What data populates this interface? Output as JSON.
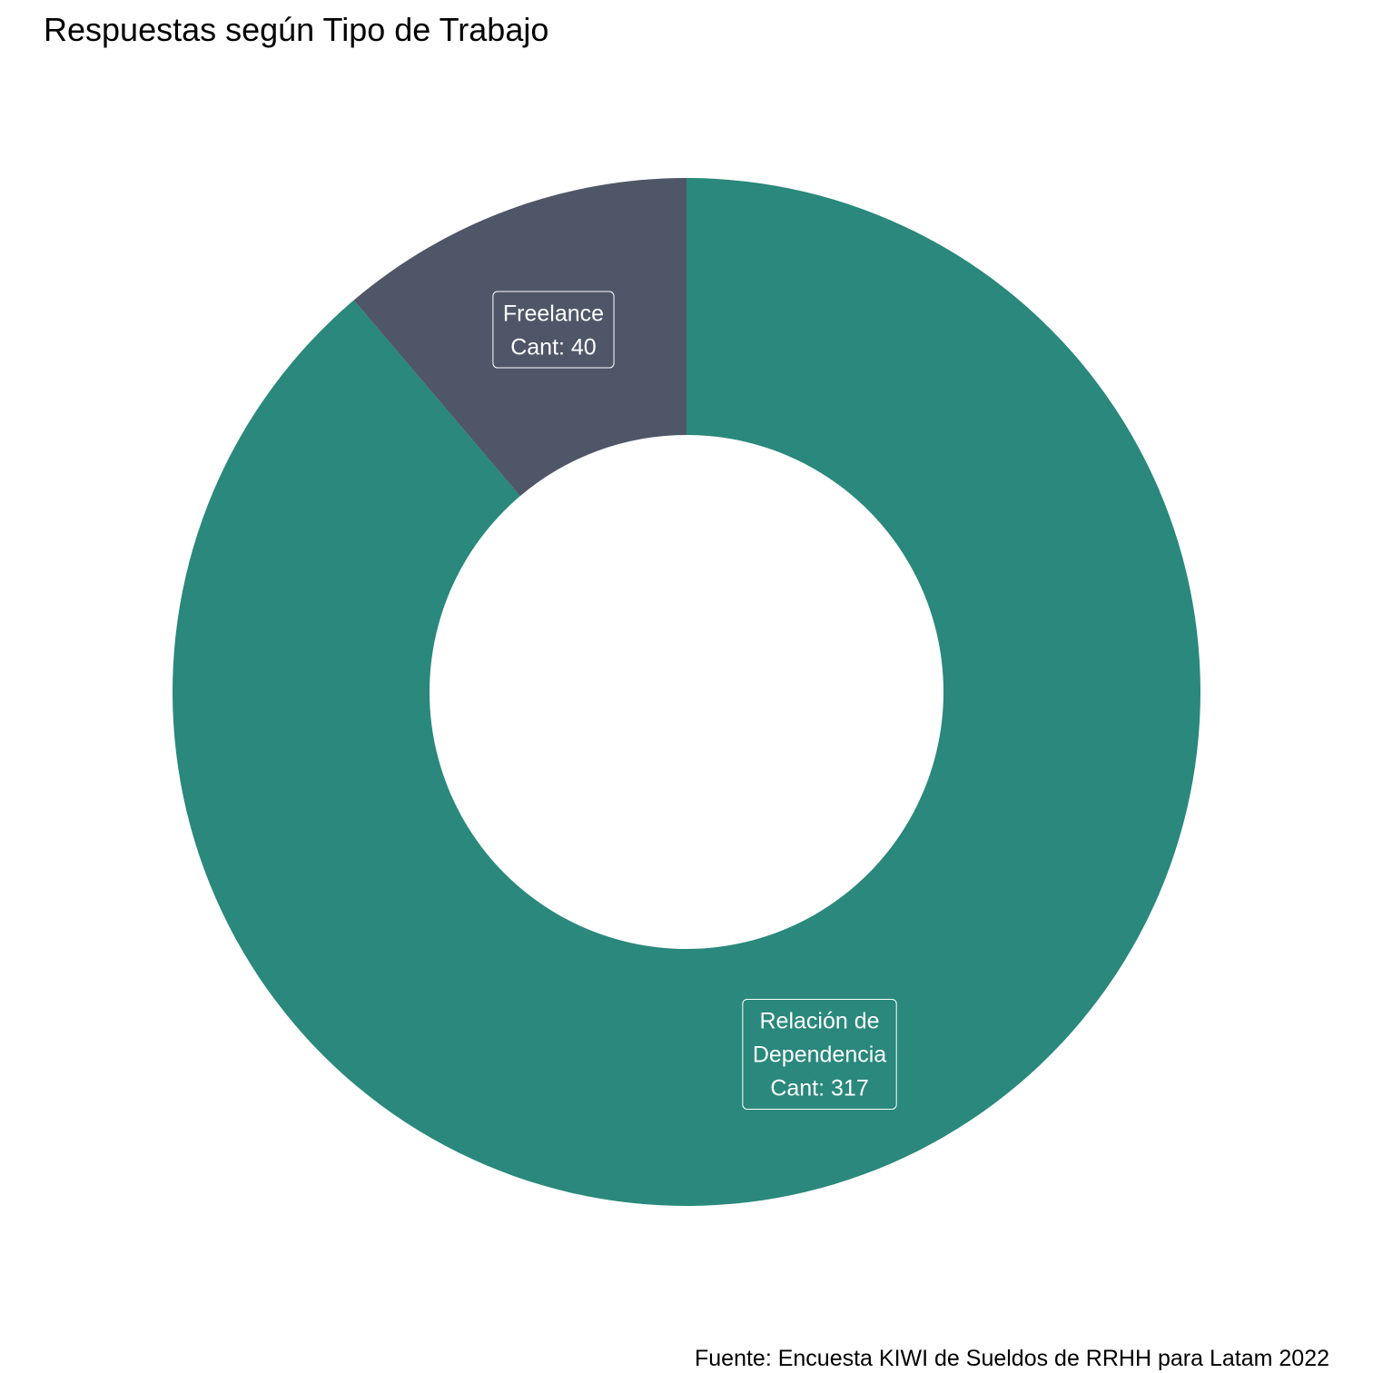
{
  "chart_data": {
    "type": "pie",
    "subtype": "donut",
    "title": "Respuestas según Tipo de Trabajo",
    "caption": "Fuente: Encuesta KIWI de Sueldos de RRHH para Latam 2022",
    "slices": [
      {
        "category": "Relación de Dependencia",
        "value": 317,
        "color": "#2A887C",
        "label_lines": [
          "Relación de",
          "Dependencia",
          "Cant: 317"
        ]
      },
      {
        "category": "Freelance",
        "value": 40,
        "color": "#4F5668",
        "label_lines": [
          "Freelance",
          "Cant: 40"
        ]
      }
    ],
    "legend": "none",
    "start_direction": "top",
    "direction": "clockwise"
  }
}
